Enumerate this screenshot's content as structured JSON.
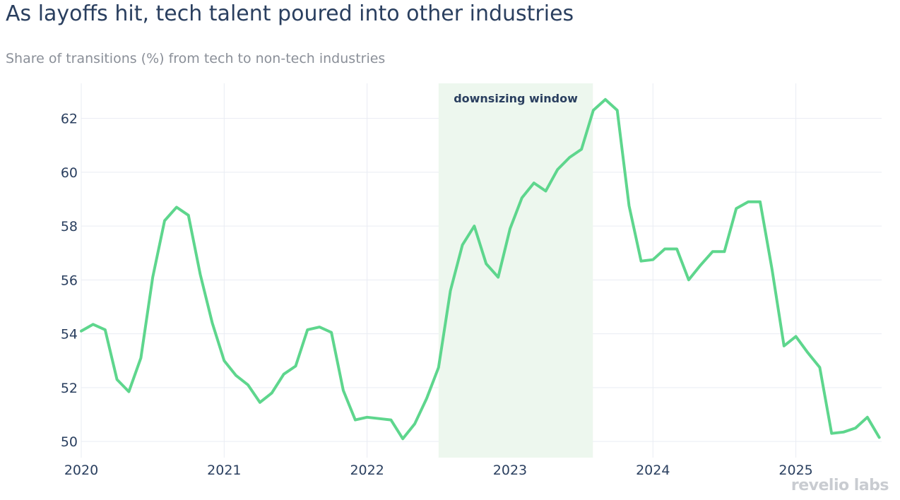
{
  "title": "As layoffs hit, tech talent poured into other industries",
  "subtitle": "Share of transitions (%) from tech to non-tech industries",
  "logo_text": "revelio labs",
  "colors": {
    "line": "#5ed68d",
    "band": "#edf7ee",
    "grid": "#e9ecf3",
    "text": "#2a3f5f"
  },
  "chart_data": {
    "type": "line",
    "title": "As layoffs hit, tech talent poured into other industries",
    "subtitle": "Share of transitions (%) from tech to non-tech industries",
    "xlabel": "",
    "ylabel": "",
    "xlim": [
      2020.0,
      2025.6
    ],
    "ylim": [
      49.4,
      63.3
    ],
    "x_ticks": [
      2020,
      2021,
      2022,
      2023,
      2024,
      2025
    ],
    "x_tick_labels": [
      "2020",
      "2021",
      "2022",
      "2023",
      "2024",
      "2025"
    ],
    "y_ticks": [
      50,
      52,
      54,
      56,
      58,
      60,
      62
    ],
    "y_tick_labels": [
      "50",
      "52",
      "54",
      "56",
      "58",
      "60",
      "62"
    ],
    "annotation": {
      "text": "downsizing window",
      "x_start": 2022.5,
      "x_end": 2023.58
    },
    "series": [
      {
        "name": "Share of transitions (%)",
        "x": [
          2020.0,
          2020.083,
          2020.167,
          2020.25,
          2020.333,
          2020.417,
          2020.5,
          2020.583,
          2020.667,
          2020.75,
          2020.833,
          2020.917,
          2021.0,
          2021.083,
          2021.167,
          2021.25,
          2021.333,
          2021.417,
          2021.5,
          2021.583,
          2021.667,
          2021.75,
          2021.833,
          2021.917,
          2022.0,
          2022.083,
          2022.167,
          2022.25,
          2022.333,
          2022.417,
          2022.5,
          2022.583,
          2022.667,
          2022.75,
          2022.833,
          2022.917,
          2023.0,
          2023.083,
          2023.167,
          2023.25,
          2023.333,
          2023.417,
          2023.5,
          2023.583,
          2023.667,
          2023.75,
          2023.833,
          2023.917,
          2024.0,
          2024.083,
          2024.167,
          2024.25,
          2024.333,
          2024.417,
          2024.5,
          2024.583,
          2024.667,
          2024.75,
          2024.833,
          2024.917,
          2025.0,
          2025.083,
          2025.167,
          2025.25,
          2025.333,
          2025.417,
          2025.5,
          2025.583
        ],
        "values": [
          54.1,
          54.35,
          54.15,
          52.3,
          51.85,
          53.1,
          56.1,
          58.2,
          58.7,
          58.4,
          56.2,
          54.4,
          53.0,
          52.45,
          52.1,
          51.45,
          51.8,
          52.5,
          52.8,
          54.15,
          54.25,
          54.05,
          51.9,
          50.8,
          50.9,
          50.85,
          50.8,
          50.1,
          50.65,
          51.6,
          52.75,
          55.6,
          57.3,
          58.0,
          56.6,
          56.1,
          57.9,
          59.05,
          59.6,
          59.3,
          60.1,
          60.55,
          60.85,
          62.3,
          62.7,
          62.3,
          58.75,
          56.7,
          56.75,
          57.15,
          57.15,
          56.0,
          56.55,
          57.05,
          57.05,
          58.65,
          58.9,
          58.9,
          56.4,
          53.55,
          53.9,
          53.3,
          52.75,
          50.3,
          50.35,
          50.5,
          50.9,
          50.15
        ]
      }
    ]
  }
}
